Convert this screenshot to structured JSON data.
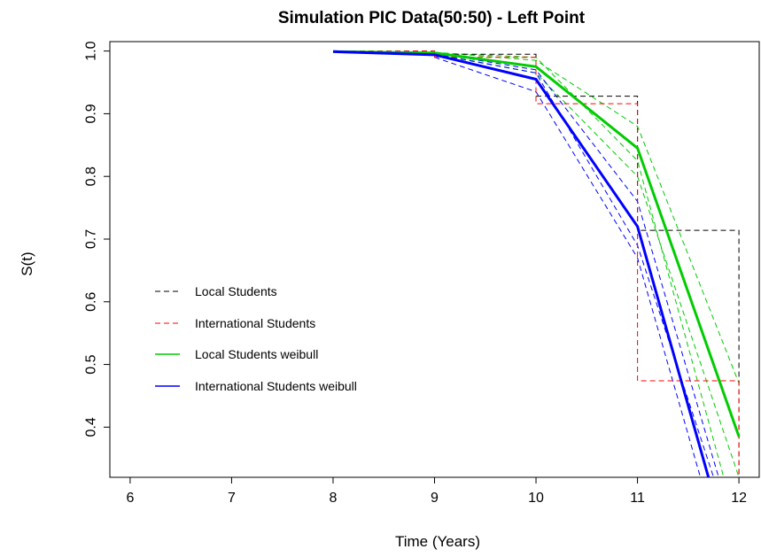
{
  "chart_data": {
    "type": "line",
    "title": "Simulation PIC Data(50:50) - Left Point",
    "xlabel": "Time (Years)",
    "ylabel": "S(t)",
    "xlim": [
      5.8,
      12.2
    ],
    "ylim": [
      0.32,
      1.015
    ],
    "x_ticks": [
      6,
      7,
      8,
      9,
      10,
      11,
      12
    ],
    "y_ticks": [
      0.4,
      0.5,
      0.6,
      0.7,
      0.8,
      0.9,
      1.0
    ],
    "y_tick_labels": [
      "0.4",
      "0.5",
      "0.6",
      "0.7",
      "0.8",
      "0.9",
      "1.0"
    ],
    "legend_position": "center-left",
    "series": [
      {
        "name": "Local Students",
        "color": "#000000",
        "style": "dashed",
        "kind": "step",
        "x": [
          8,
          9,
          9,
          10,
          10,
          11,
          11,
          12,
          12
        ],
        "y": [
          1.0,
          1.0,
          0.995,
          0.995,
          0.928,
          0.928,
          0.714,
          0.714,
          0.32
        ]
      },
      {
        "name": "International Students",
        "color": "#ff0000",
        "style": "dashed",
        "kind": "step",
        "x": [
          8,
          9,
          9,
          10,
          10,
          11,
          11,
          12,
          12
        ],
        "y": [
          1.0,
          1.0,
          0.99,
          0.99,
          0.916,
          0.916,
          0.474,
          0.474,
          0.32
        ]
      },
      {
        "name": "Local Students weibull",
        "color": "#00cc00",
        "style": "solid",
        "width": 3,
        "x": [
          8,
          9,
          10,
          11,
          12
        ],
        "y": [
          0.999,
          0.997,
          0.975,
          0.845,
          0.385
        ]
      },
      {
        "name": "International Students weibull",
        "color": "#0000ff",
        "style": "solid",
        "width": 3,
        "x": [
          8,
          9,
          10,
          11,
          11.7
        ],
        "y": [
          0.999,
          0.994,
          0.955,
          0.72,
          0.32
        ]
      }
    ],
    "confidence_bands": [
      {
        "color": "#00cc00",
        "style": "dashed",
        "x": [
          9,
          10,
          11,
          12
        ],
        "y": [
          0.998,
          0.985,
          0.88,
          0.47
        ]
      },
      {
        "color": "#00cc00",
        "style": "dashed",
        "x": [
          9,
          10,
          11,
          12
        ],
        "y": [
          0.996,
          0.965,
          0.8,
          0.32
        ]
      },
      {
        "color": "#00cc00",
        "style": "dashed",
        "x": [
          9,
          10,
          11,
          11.85
        ],
        "y": [
          0.997,
          0.99,
          0.825,
          0.32
        ]
      },
      {
        "color": "#0000ff",
        "style": "dashed",
        "x": [
          9,
          10,
          11,
          11.8
        ],
        "y": [
          0.997,
          0.97,
          0.76,
          0.32
        ]
      },
      {
        "color": "#0000ff",
        "style": "dashed",
        "x": [
          9,
          10,
          11,
          11.62
        ],
        "y": [
          0.99,
          0.935,
          0.67,
          0.32
        ]
      },
      {
        "color": "#0000ff",
        "style": "dashed",
        "x": [
          9,
          10,
          11,
          11.75
        ],
        "y": [
          0.995,
          0.965,
          0.69,
          0.32
        ]
      }
    ]
  }
}
